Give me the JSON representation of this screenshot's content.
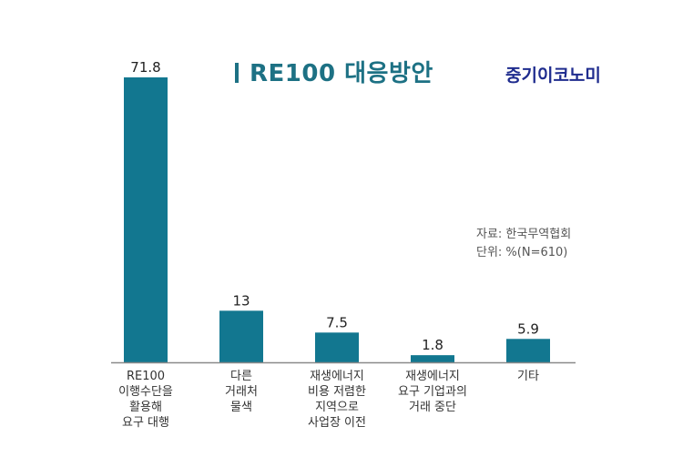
{
  "title": "RE100 대응방안",
  "brand": "중기이코노미",
  "source": "자료: 한국무역협회",
  "unit": "단위: %(N=610)",
  "colors": {
    "bar": "#127790",
    "title": "#1d7184",
    "brand": "#1f2c8e",
    "axis": "#8a8a8a"
  },
  "chart_data": {
    "type": "bar",
    "title": "RE100 대응방안",
    "categories": [
      "RE100 이행수단을 활용해 요구 대행",
      "다른 거래처 물색",
      "재생에너지 비용 저렴한 지역으로 사업장 이전",
      "재생에너지 요구 기업과의 거래 중단",
      "기타"
    ],
    "category_lines": [
      [
        "RE100",
        "이행수단을",
        "활용해",
        "요구 대행"
      ],
      [
        "다른",
        "거래처",
        "물색"
      ],
      [
        "재생에너지",
        "비용 저렴한",
        "지역으로",
        "사업장 이전"
      ],
      [
        "재생에너지",
        "요구 기업과의",
        "거래 중단"
      ],
      [
        "기타"
      ]
    ],
    "values": [
      71.8,
      13,
      7.5,
      1.8,
      5.9
    ],
    "value_labels": [
      "71.8",
      "13",
      "7.5",
      "1.8",
      "5.9"
    ],
    "xlabel": "",
    "ylabel": "",
    "ylim": [
      0,
      71.8
    ],
    "grid": false,
    "legend": "none"
  }
}
